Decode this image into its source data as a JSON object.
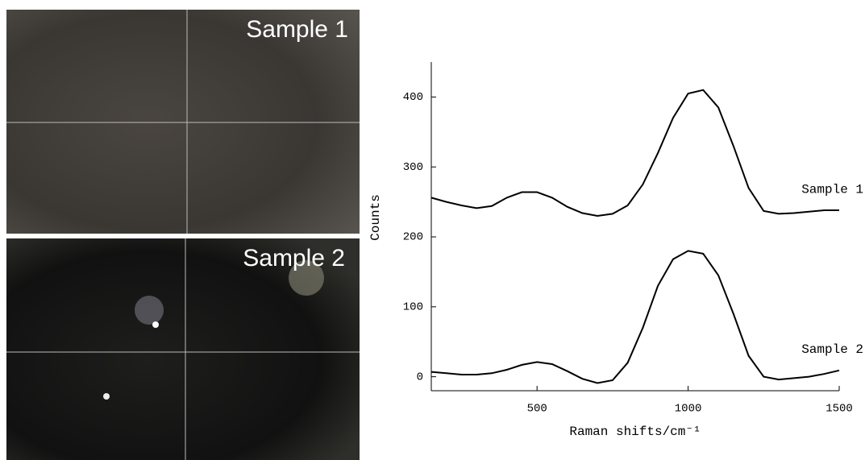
{
  "images": [
    {
      "label": "Sample 1"
    },
    {
      "label": "Sample 2"
    }
  ],
  "chart_data": {
    "type": "line",
    "x_label": "Raman shifts/cm⁻¹",
    "y_label": "Counts",
    "x": [
      150,
      200,
      250,
      300,
      350,
      400,
      450,
      500,
      550,
      600,
      650,
      700,
      750,
      800,
      850,
      900,
      950,
      1000,
      1050,
      1100,
      1150,
      1200,
      1250,
      1300,
      1350,
      1400,
      1450,
      1500
    ],
    "series": [
      {
        "name": "Sample 1",
        "color": "#000000",
        "values": [
          256,
          250,
          245,
          241,
          244,
          256,
          264,
          264,
          256,
          243,
          234,
          230,
          233,
          245,
          275,
          320,
          370,
          405,
          410,
          385,
          330,
          270,
          237,
          233,
          234,
          236,
          238,
          238
        ]
      },
      {
        "name": "Sample 2",
        "color": "#000000",
        "values": [
          7,
          5,
          3,
          3,
          5,
          10,
          17,
          21,
          18,
          8,
          -3,
          -9,
          -5,
          20,
          70,
          130,
          168,
          180,
          176,
          145,
          90,
          30,
          0,
          -4,
          -2,
          0,
          4,
          9
        ]
      }
    ],
    "xlim": [
      150,
      1500
    ],
    "ylim": [
      -20,
      450
    ],
    "xticks": [
      500,
      1000,
      1500
    ],
    "yticks": [
      0,
      100,
      200,
      300,
      400
    ]
  }
}
